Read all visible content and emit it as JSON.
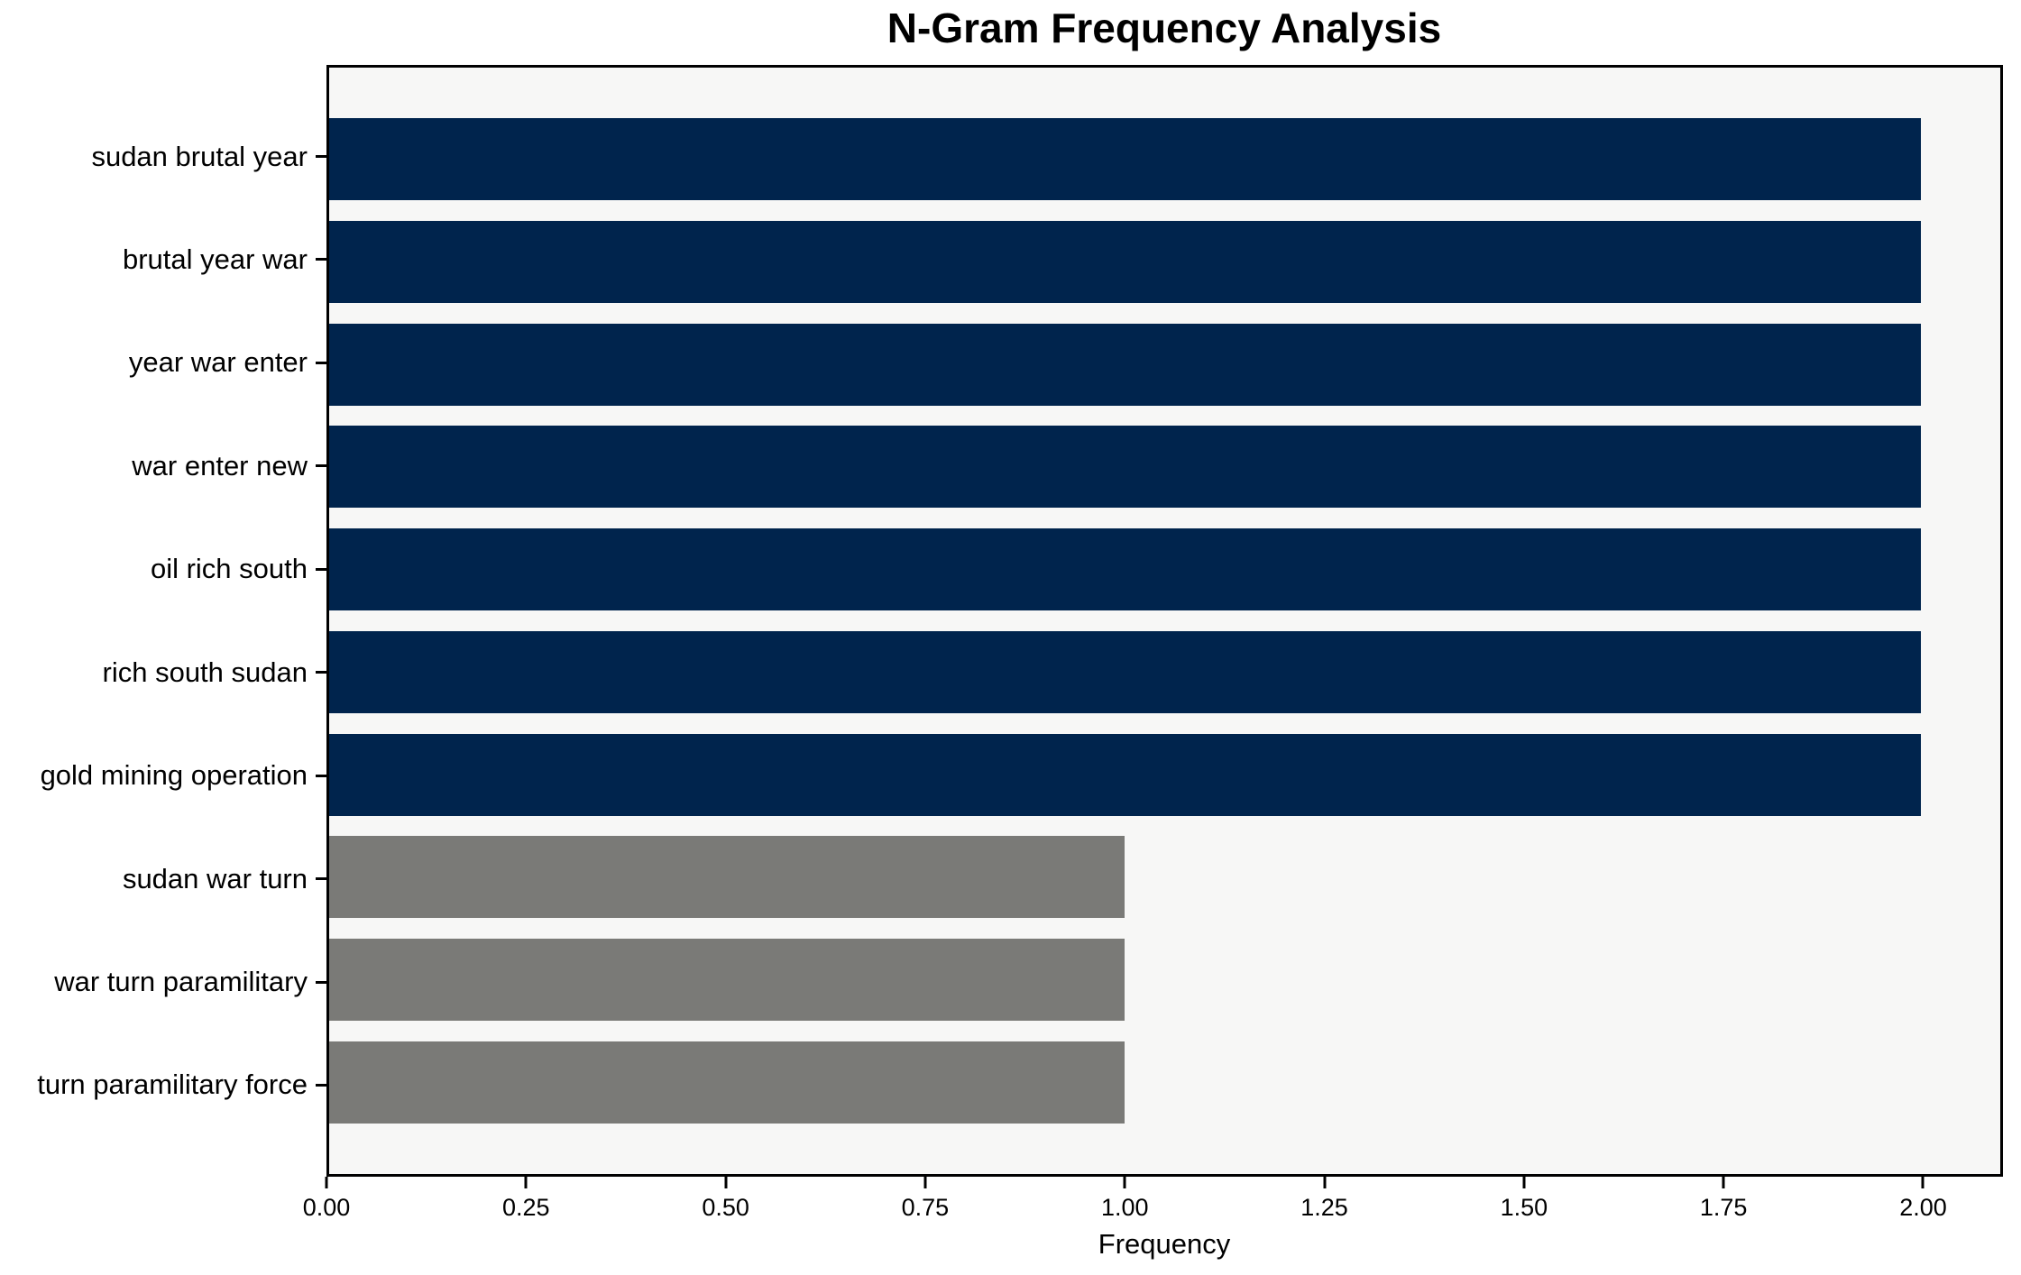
{
  "figure": {
    "background_color": "#ffffff",
    "plot_background_color": "#f7f7f6",
    "spine_color": "#000000"
  },
  "colors": {
    "primary_bar": "#00244d",
    "secondary_bar": "#7a7a77"
  },
  "chart_data": {
    "type": "bar",
    "orientation": "horizontal",
    "title": "N-Gram Frequency Analysis",
    "xlabel": "Frequency",
    "ylabel": "",
    "categories": [
      "sudan brutal year",
      "brutal year war",
      "year war enter",
      "war enter new",
      "oil rich south",
      "rich south sudan",
      "gold mining operation",
      "sudan war turn",
      "war turn paramilitary",
      "turn paramilitary force"
    ],
    "values": [
      2,
      2,
      2,
      2,
      2,
      2,
      2,
      1,
      1,
      1
    ],
    "bar_colors": [
      "#00244d",
      "#00244d",
      "#00244d",
      "#00244d",
      "#00244d",
      "#00244d",
      "#00244d",
      "#7a7a77",
      "#7a7a77",
      "#7a7a77"
    ],
    "xlim": [
      0,
      2.1
    ],
    "x_ticks": [
      0,
      0.25,
      0.5,
      0.75,
      1.0,
      1.25,
      1.5,
      1.75,
      2.0
    ],
    "x_tick_labels": [
      "0.00",
      "0.25",
      "0.50",
      "0.75",
      "1.00",
      "1.25",
      "1.50",
      "1.75",
      "2.00"
    ],
    "grid": false,
    "legend": null
  }
}
